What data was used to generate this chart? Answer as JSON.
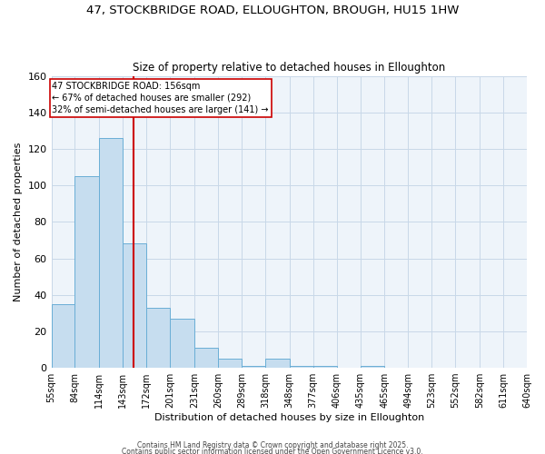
{
  "title_line1": "47, STOCKBRIDGE ROAD, ELLOUGHTON, BROUGH, HU15 1HW",
  "title_line2": "Size of property relative to detached houses in Elloughton",
  "xlabel": "Distribution of detached houses by size in Elloughton",
  "ylabel": "Number of detached properties",
  "bar_values": [
    35,
    105,
    126,
    68,
    33,
    27,
    11,
    5,
    1,
    5,
    1,
    1,
    0,
    1,
    0,
    0,
    0,
    0,
    0,
    0
  ],
  "bin_edges": [
    55,
    84,
    114,
    143,
    172,
    201,
    231,
    260,
    289,
    318,
    348,
    377,
    406,
    435,
    465,
    494,
    523,
    552,
    582,
    611,
    640
  ],
  "bar_color": "#c6ddef",
  "bar_edgecolor": "#6aaed6",
  "property_size": 156,
  "annotation_text": "47 STOCKBRIDGE ROAD: 156sqm\n← 67% of detached houses are smaller (292)\n32% of semi-detached houses are larger (141) →",
  "annotation_box_color": "#ffffff",
  "annotation_box_edgecolor": "#cc0000",
  "redline_color": "#cc0000",
  "bg_color": "#eef4fa",
  "ylim": [
    0,
    160
  ],
  "yticks": [
    0,
    20,
    40,
    60,
    80,
    100,
    120,
    140,
    160
  ],
  "footer1": "Contains HM Land Registry data © Crown copyright and database right 2025.",
  "footer2": "Contains public sector information licensed under the Open Government Licence v3.0."
}
